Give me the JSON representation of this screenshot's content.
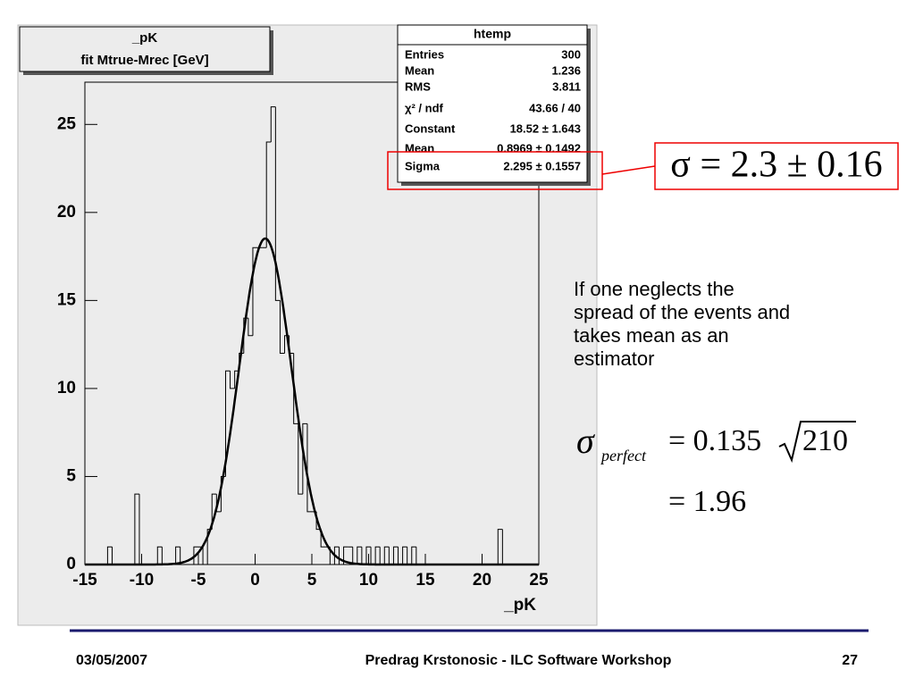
{
  "chart_data": {
    "type": "histogram",
    "x_label": "_pK",
    "bins": [
      -15,
      -14.6,
      -14.2,
      -13.8,
      -13.4,
      -13,
      -12.6,
      -12.2,
      -11.8,
      -11.4,
      -11,
      -10.6,
      -10.2,
      -9.8,
      -9.4,
      -9,
      -8.6,
      -8.2,
      -7.8,
      -7.4,
      -7,
      -6.6,
      -6.2,
      -5.8,
      -5.4,
      -5,
      -4.6,
      -4.2,
      -3.8,
      -3.4,
      -3,
      -2.6,
      -2.2,
      -1.8,
      -1.4,
      -1,
      -0.6,
      -0.2,
      0.2,
      0.6,
      1,
      1.4,
      1.8,
      2.2,
      2.6,
      3,
      3.4,
      3.8,
      4.2,
      4.6,
      5,
      5.4,
      5.8,
      6.2,
      6.6,
      7,
      7.4,
      7.8,
      8.2,
      8.6,
      9,
      9.4,
      9.8,
      10.2,
      10.6,
      11,
      11.4,
      11.8,
      12.2,
      12.6,
      13,
      13.4,
      13.8,
      14.2,
      14.6,
      15,
      15.4,
      15.8,
      16.2,
      16.6,
      17,
      17.4,
      17.8,
      18.2,
      18.6,
      19,
      19.4,
      19.8,
      20.2,
      20.6,
      21,
      21.4,
      21.8,
      22.2,
      22.6,
      23,
      23.4,
      23.8,
      24.2,
      24.6,
      25
    ],
    "values": [
      0,
      0,
      0,
      0,
      0,
      1,
      0,
      0,
      0,
      0,
      0,
      4,
      0,
      0,
      0,
      0,
      1,
      0,
      0,
      0,
      1,
      0,
      0,
      0,
      1,
      1,
      0,
      2,
      4,
      3,
      5,
      11,
      10,
      11,
      12,
      14,
      13,
      18,
      18,
      18,
      24,
      26,
      15,
      12,
      13,
      12,
      8,
      4,
      8,
      3,
      3,
      2,
      1,
      1,
      0,
      1,
      0,
      1,
      1,
      0,
      1,
      0,
      1,
      0,
      1,
      0,
      1,
      0,
      1,
      0,
      1,
      0,
      1,
      0,
      0,
      0,
      0,
      0,
      0,
      0,
      0,
      0,
      0,
      0,
      0,
      0,
      0,
      0,
      0,
      0,
      0,
      2,
      0,
      0,
      0,
      0,
      0,
      0,
      0,
      0
    ],
    "color": "#000000",
    "fit": {
      "constant": 18.52,
      "mean": 0.8969,
      "sigma": 2.295,
      "color": "#000000"
    },
    "xlim": [
      -15,
      25
    ],
    "xticks": [
      -15,
      -10,
      -5,
      0,
      5,
      10,
      15,
      20,
      25
    ],
    "ylim": [
      0,
      27.4
    ],
    "yticks": [
      0,
      5,
      10,
      15,
      20,
      25
    ]
  },
  "title_box": {
    "line1": "_pK",
    "line2": "fit Mtrue-Mrec [GeV]"
  },
  "stats": {
    "title": "htemp",
    "rows": [
      [
        "Entries",
        "300"
      ],
      [
        "Mean",
        "1.236"
      ],
      [
        "RMS",
        "3.811"
      ],
      [
        "χ² / ndf",
        "43.66 / 40"
      ],
      [
        "Constant",
        "18.52 ± 1.643"
      ],
      [
        "Mean",
        "0.8969 ± 0.1492"
      ],
      [
        "Sigma",
        "2.295 ± 0.1557"
      ]
    ]
  },
  "sigma_result": "σ = 2.3 ± 0.16",
  "note": [
    "If one neglects the",
    "spread of the events and",
    "takes mean as an",
    "estimator"
  ],
  "perfect": {
    "symbol": "σ",
    "subscript": "perfect",
    "rhs": "= 0.135",
    "radicand": "210",
    "result": "= 1.96"
  },
  "footer": {
    "date": "03/05/2007",
    "center": "Predrag Krstonosic - ILC Software Workshop",
    "page": "27"
  }
}
